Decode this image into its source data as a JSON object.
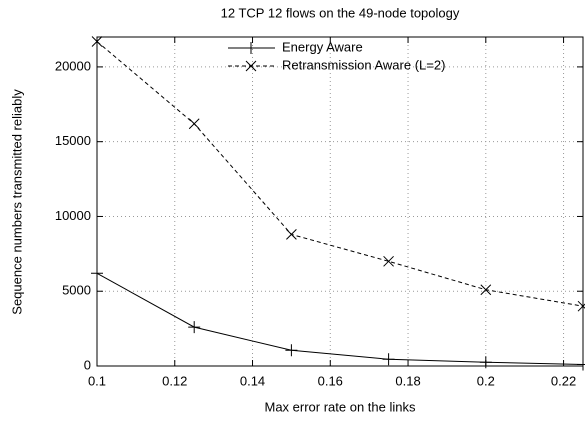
{
  "chart_data": {
    "type": "line",
    "title": "12 TCP 12 flows on the 49-node topology",
    "x_label": "Max error rate on the links",
    "y_label": "Sequence numbers transmitted reliably",
    "x": [
      0.1,
      0.125,
      0.15,
      0.175,
      0.2,
      0.225
    ],
    "series": [
      {
        "name": "Energy Aware",
        "color": "#000000",
        "marker": "+",
        "dash": false,
        "values": [
          6200,
          2600,
          1050,
          450,
          250,
          100
        ]
      },
      {
        "name": "Retransmission Aware (L=2)",
        "color": "#000000",
        "marker": "x",
        "dash": true,
        "values": [
          21700,
          16200,
          8800,
          7000,
          5100,
          4000
        ]
      }
    ],
    "xlim": [
      0.1,
      0.225
    ],
    "xticks": [
      0.1,
      0.12,
      0.14,
      0.16,
      0.18,
      0.2,
      0.22
    ],
    "ylim": [
      0,
      22000
    ],
    "yticks": [
      0,
      5000,
      10000,
      15000,
      20000
    ],
    "grid": true,
    "legend": "top"
  }
}
